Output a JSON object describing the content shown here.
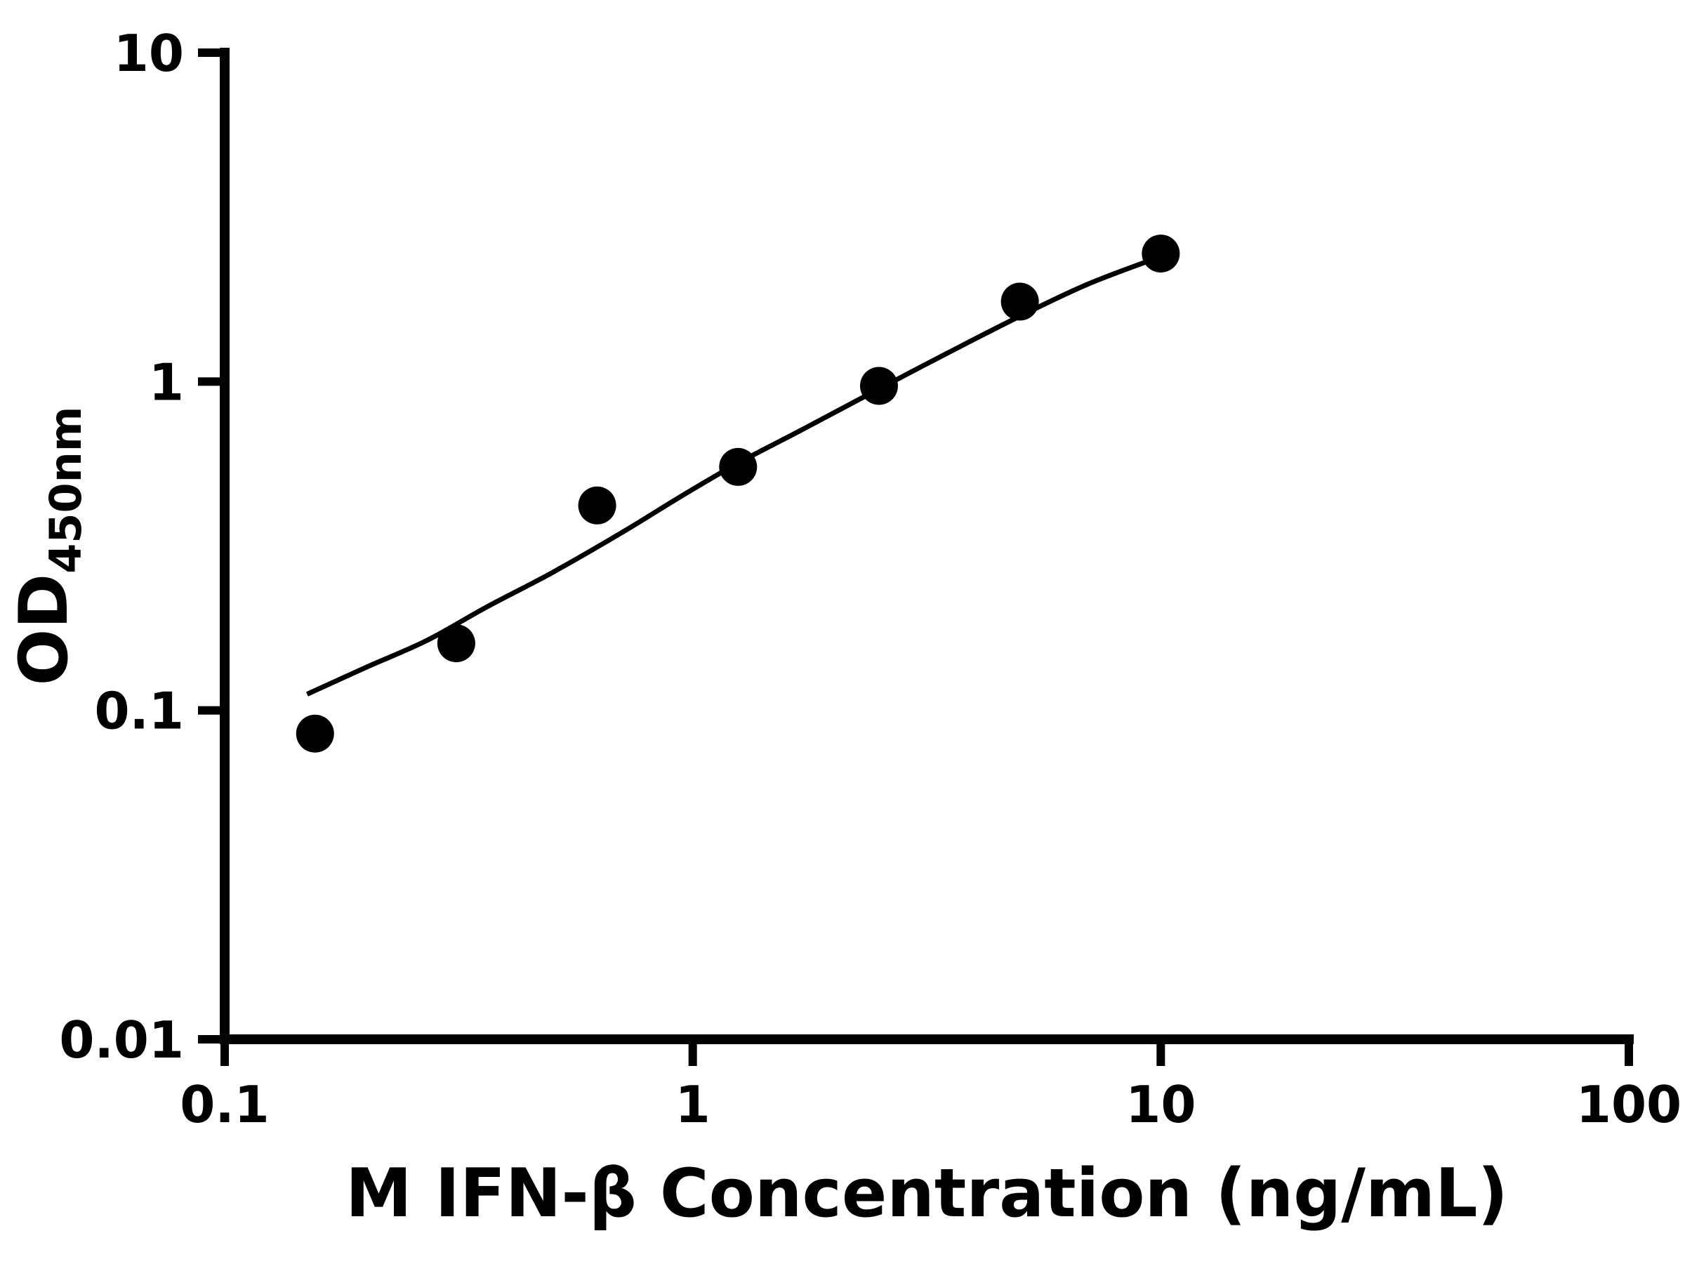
{
  "chart_data": {
    "type": "scatter",
    "title": "",
    "xlabel": "M IFN-β Concentration (ng/mL)",
    "ylabel_main": "OD",
    "ylabel_subscript": "450nm",
    "x_scale": "log",
    "y_scale": "log",
    "xlim": [
      0.1,
      100
    ],
    "ylim": [
      0.01,
      10
    ],
    "x_ticks": [
      0.1,
      1,
      10,
      100
    ],
    "x_tick_labels": [
      "0.1",
      "1",
      "10",
      "100"
    ],
    "y_ticks": [
      0.01,
      0.1,
      1,
      10
    ],
    "y_tick_labels": [
      "0.01",
      "0.1",
      "1",
      "10"
    ],
    "grid": false,
    "legend": false,
    "background": "#ffffff",
    "axis_color": "#000000",
    "marker_color": "#000000",
    "line_color": "#000000",
    "points": [
      [
        0.156,
        0.085
      ],
      [
        0.3125,
        0.16
      ],
      [
        0.625,
        0.42
      ],
      [
        1.25,
        0.55
      ],
      [
        2.5,
        0.97
      ],
      [
        5,
        1.75
      ],
      [
        10,
        2.45
      ]
    ],
    "fit_curve": [
      [
        0.15,
        0.112
      ],
      [
        0.2,
        0.135
      ],
      [
        0.27,
        0.163
      ],
      [
        0.36,
        0.205
      ],
      [
        0.5,
        0.262
      ],
      [
        0.7,
        0.345
      ],
      [
        0.95,
        0.45
      ],
      [
        1.25,
        0.565
      ],
      [
        1.7,
        0.71
      ],
      [
        2.5,
        0.95
      ],
      [
        3.5,
        1.22
      ],
      [
        5.0,
        1.58
      ],
      [
        7.0,
        1.98
      ],
      [
        10.0,
        2.4
      ]
    ]
  }
}
